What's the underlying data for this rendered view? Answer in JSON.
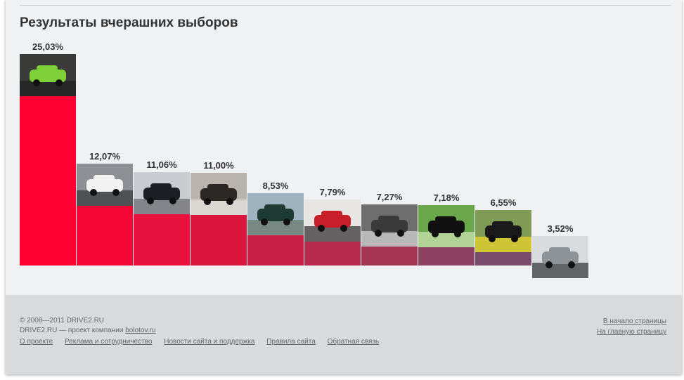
{
  "page": {
    "title": "Результаты вчерашних выборов"
  },
  "chart_data": {
    "type": "bar",
    "title": "Результаты вчерашних выборов",
    "categories": [
      "",
      "",
      "",
      "",
      "",
      "",
      "",
      "",
      "",
      ""
    ],
    "values": [
      25.03,
      12.07,
      11.06,
      11.0,
      8.53,
      7.79,
      7.27,
      7.18,
      6.55,
      3.52
    ],
    "labels": [
      "25,03%",
      "12,07%",
      "11,06%",
      "11,00%",
      "8,53%",
      "7,79%",
      "7,27%",
      "7,18%",
      "6,55%",
      "3,52%"
    ],
    "colors": [
      "#ff0033",
      "#f40535",
      "#e8103d",
      "#dc153f",
      "#c81f46",
      "#b7294d",
      "#a63454",
      "#8e4262",
      "#7a4c6b",
      "#5a5c7e"
    ],
    "photo_icons": [
      "green-car-photo-icon",
      "white-bmw-photo-icon",
      "black-hatchback-photo-icon",
      "wheels-photo-icon",
      "green-sedan-photo-icon",
      "red-sportscar-photo-icon",
      "camo-car-photo-icon",
      "black-car-park-photo-icon",
      "black-sedan-photo-icon",
      "silver-car-photo-icon"
    ],
    "ylim": [
      0,
      25.03
    ],
    "grid": false,
    "legend": "none"
  },
  "footer": {
    "copyright": "© 2008—2011 DRIVE2.RU",
    "company_prefix": "DRIVE2.RU — проект компании ",
    "company_link": "bolotov.ru",
    "links": [
      "О проекте",
      "Реклама и сотрудничество",
      "Новости сайта и поддержка",
      "Правила сайта",
      "Обратная связь"
    ],
    "to_top": "В начало страницы",
    "to_home": "На главную страницу"
  }
}
